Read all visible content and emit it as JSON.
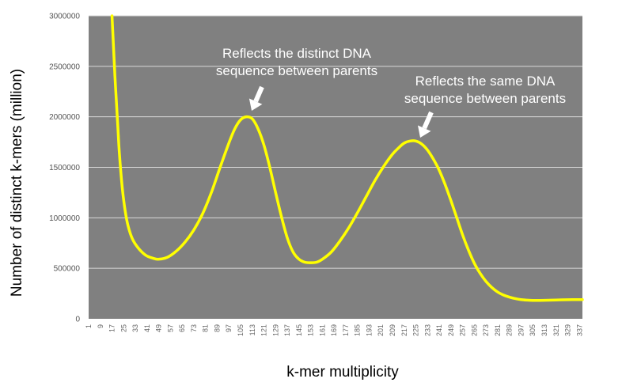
{
  "chart_data": {
    "type": "line",
    "title": "",
    "xlabel": "k-mer multiplicity",
    "ylabel": "Number of distinct k-mers (million)",
    "xlim": [
      1,
      339
    ],
    "ylim": [
      0,
      3000000
    ],
    "grid": "horizontal",
    "y_ticks": [
      "0",
      "500000",
      "1000000",
      "1500000",
      "2000000",
      "2500000",
      "3000000"
    ],
    "x_ticks": [
      "1",
      "9",
      "17",
      "25",
      "33",
      "41",
      "49",
      "57",
      "65",
      "73",
      "81",
      "89",
      "97",
      "105",
      "113",
      "121",
      "129",
      "137",
      "145",
      "153",
      "161",
      "169",
      "177",
      "185",
      "193",
      "201",
      "209",
      "217",
      "225",
      "233",
      "241",
      "249",
      "257",
      "265",
      "273",
      "281",
      "289",
      "297",
      "305",
      "313",
      "321",
      "329",
      "337"
    ],
    "colors": {
      "plot_bg": "#808080",
      "line": "#ffff00",
      "grid": "#d9d9d9",
      "annotation": "#ffffff"
    },
    "series": [
      {
        "x": [
          17,
          18,
          19,
          20,
          21,
          22,
          24,
          26,
          28,
          31,
          35,
          40,
          45,
          49,
          55,
          61,
          67,
          73,
          79,
          85,
          91,
          97,
          101,
          105,
          109,
          113,
          117,
          121,
          125,
          129,
          133,
          137,
          141,
          145,
          149,
          153,
          157,
          161,
          167,
          173,
          179,
          185,
          191,
          197,
          203,
          209,
          213,
          217,
          221,
          225,
          229,
          233,
          237,
          241,
          245,
          249,
          253,
          257,
          261,
          265,
          269,
          273,
          277,
          281,
          285,
          289,
          293,
          297,
          301,
          305,
          309,
          313,
          321,
          329,
          337,
          339
        ],
        "values": [
          3000000,
          2700000,
          2400000,
          2150000,
          1900000,
          1650000,
          1300000,
          1070000,
          920000,
          790000,
          700000,
          630000,
          600000,
          590000,
          610000,
          670000,
          760000,
          880000,
          1040000,
          1250000,
          1500000,
          1740000,
          1880000,
          1970000,
          2000000,
          1980000,
          1880000,
          1720000,
          1500000,
          1250000,
          1010000,
          800000,
          660000,
          590000,
          560000,
          555000,
          560000,
          590000,
          660000,
          770000,
          900000,
          1050000,
          1210000,
          1370000,
          1510000,
          1630000,
          1690000,
          1740000,
          1760000,
          1760000,
          1730000,
          1670000,
          1580000,
          1470000,
          1330000,
          1170000,
          1000000,
          830000,
          680000,
          550000,
          450000,
          370000,
          310000,
          265000,
          235000,
          215000,
          200000,
          190000,
          185000,
          182000,
          182000,
          183000,
          186000,
          189000,
          190000,
          190000
        ]
      }
    ],
    "annotations": [
      {
        "lines": [
          "Reflects the distinct DNA",
          "sequence between parents"
        ],
        "x": 113,
        "y": 2000000
      },
      {
        "lines": [
          "Reflects the same DNA",
          "sequence between parents"
        ],
        "x": 225,
        "y": 1760000
      }
    ]
  }
}
